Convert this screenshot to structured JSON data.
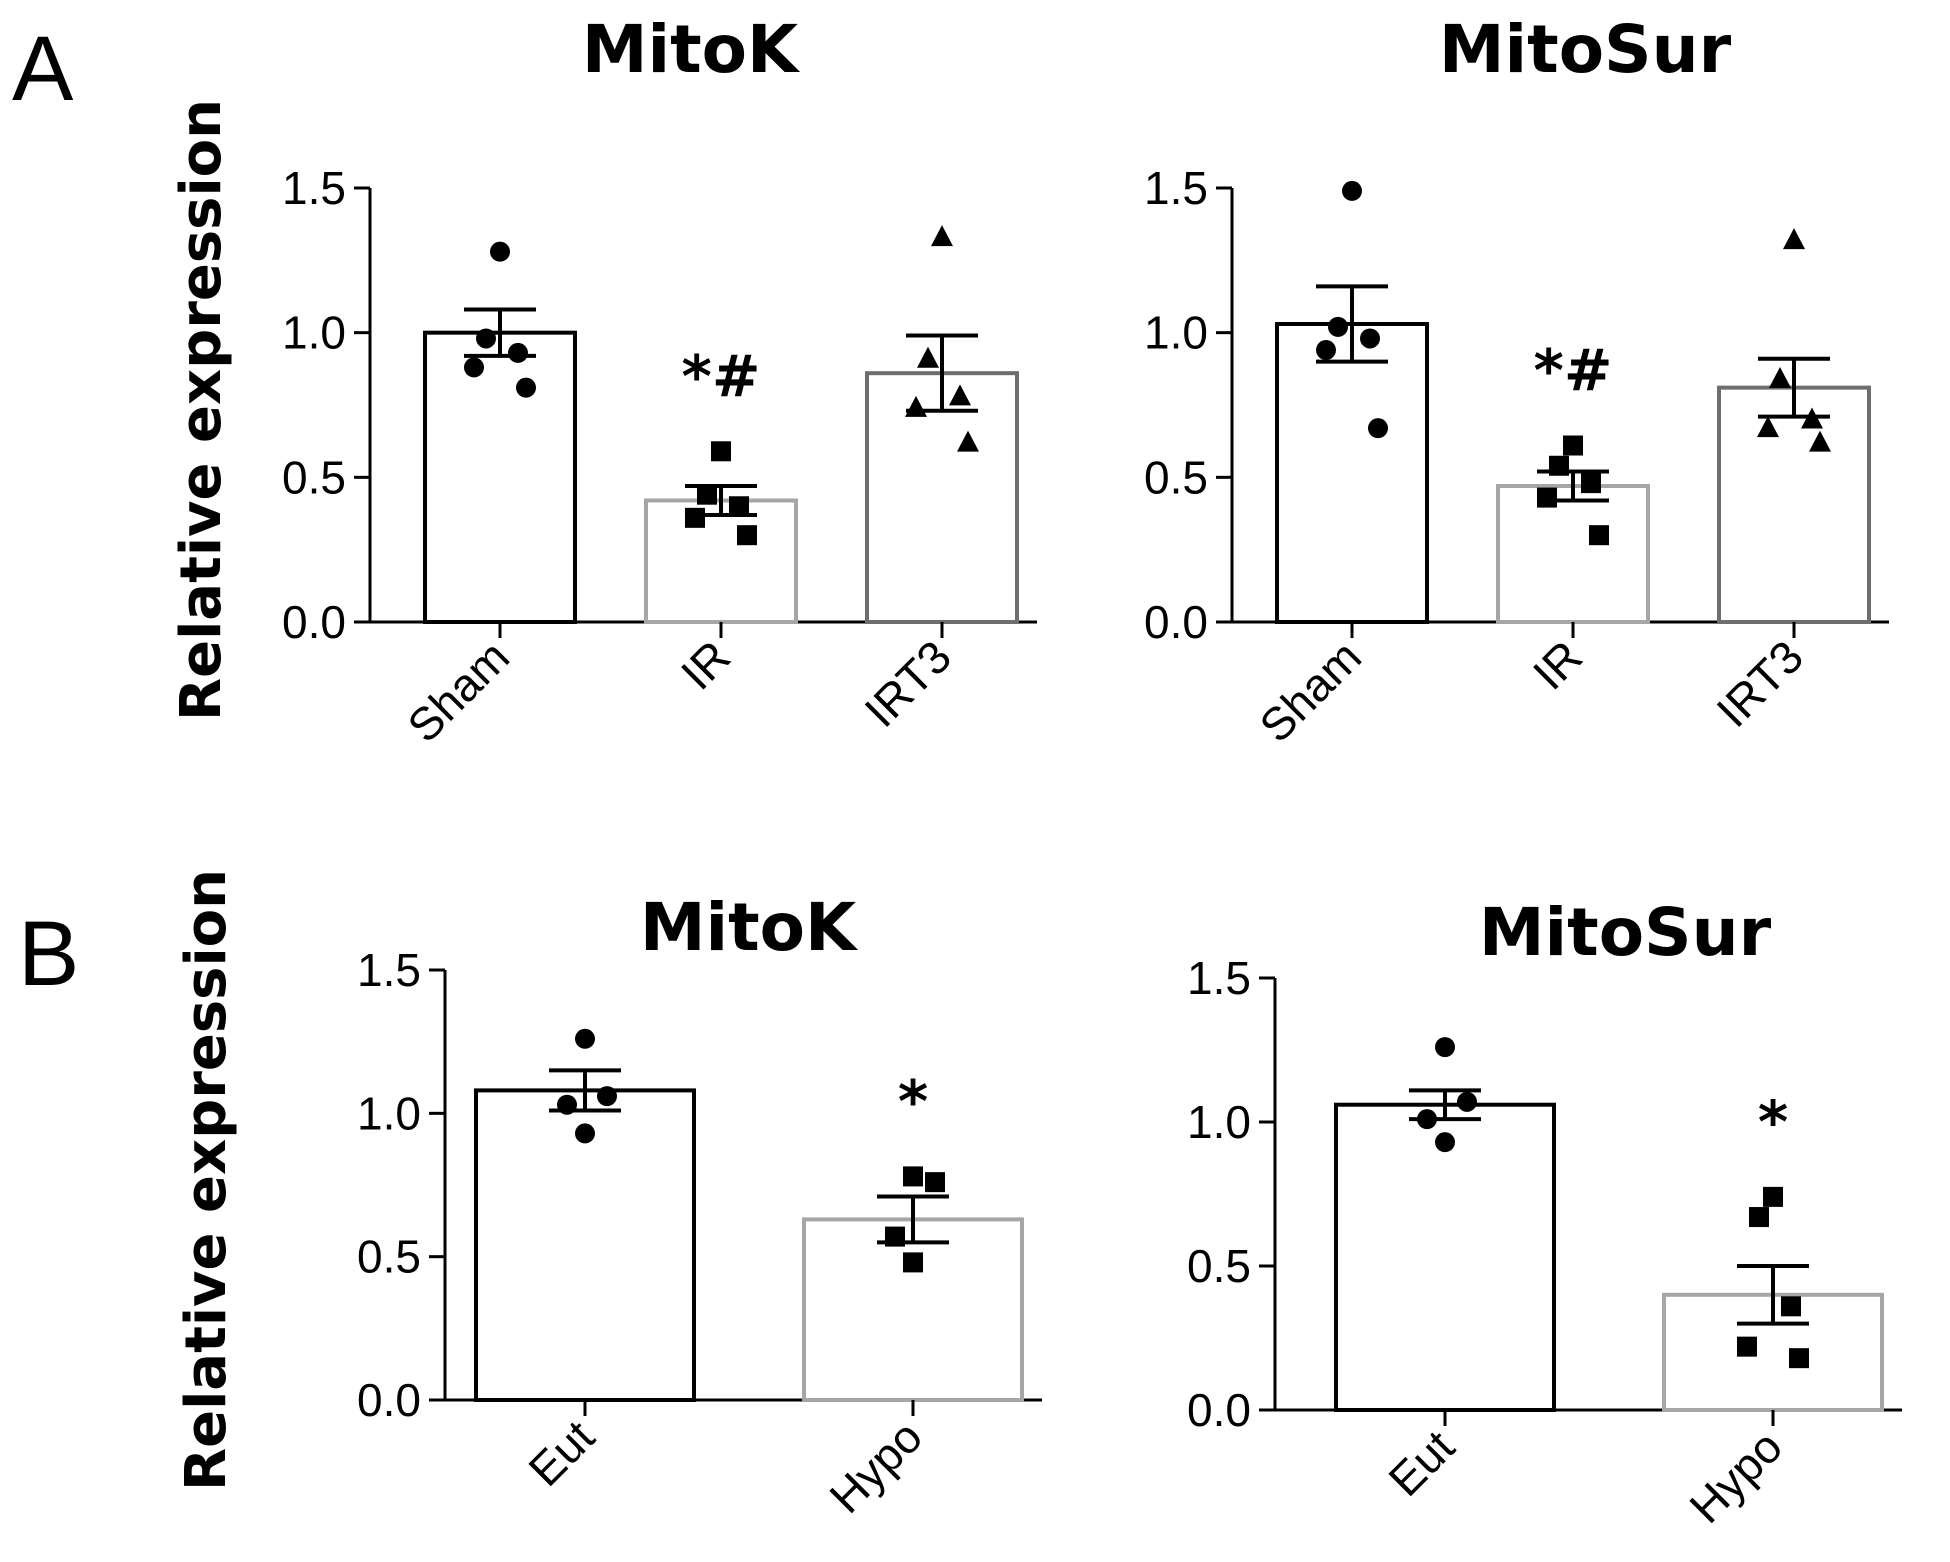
{
  "panels": [
    {
      "letter": "A"
    },
    {
      "letter": "B"
    }
  ],
  "colors": {
    "axis": "#000000",
    "bar_black": "#000000",
    "bar_light_gray": "#a6a6a6",
    "bar_dark_gray": "#6e6e6e",
    "points": "#000000"
  },
  "chart_data": [
    {
      "type": "bar",
      "panel": "A",
      "title": "MitoK",
      "ylabel": "Relative expression",
      "xlabel": "",
      "ylim": [
        0,
        1.5
      ],
      "yticks": [
        "0.0",
        "0.5",
        "1.0",
        "1.5"
      ],
      "categories": [
        "Sham",
        "IR",
        "IRT3"
      ],
      "values": [
        1.0,
        0.42,
        0.86
      ],
      "sem": [
        0.08,
        0.05,
        0.13
      ],
      "bar_colors": [
        "#000000",
        "#a6a6a6",
        "#6e6e6e"
      ],
      "markers": [
        "circle",
        "square",
        "triangle"
      ],
      "points": [
        [
          1.28,
          0.98,
          0.93,
          0.88,
          0.81
        ],
        [
          0.59,
          0.44,
          0.4,
          0.36,
          0.3
        ],
        [
          1.33,
          0.91,
          0.78,
          0.74,
          0.62
        ]
      ],
      "annotations": [
        "",
        "*#",
        ""
      ]
    },
    {
      "type": "bar",
      "panel": "A",
      "title": "MitoSur",
      "ylabel": "",
      "xlabel": "",
      "ylim": [
        0,
        1.5
      ],
      "yticks": [
        "0.0",
        "0.5",
        "1.0",
        "1.5"
      ],
      "categories": [
        "Sham",
        "IR",
        "IRT3"
      ],
      "values": [
        1.03,
        0.47,
        0.81
      ],
      "sem": [
        0.13,
        0.05,
        0.1
      ],
      "bar_colors": [
        "#000000",
        "#a6a6a6",
        "#6e6e6e"
      ],
      "markers": [
        "circle",
        "square",
        "triangle"
      ],
      "points": [
        [
          1.49,
          1.02,
          0.98,
          0.94,
          0.67
        ],
        [
          0.61,
          0.54,
          0.48,
          0.43,
          0.3
        ],
        [
          1.32,
          0.84,
          0.7,
          0.67,
          0.62
        ]
      ],
      "annotations": [
        "",
        "*#",
        ""
      ]
    },
    {
      "type": "bar",
      "panel": "B",
      "title": "MitoK",
      "ylabel": "Relative expression",
      "xlabel": "",
      "ylim": [
        0,
        1.5
      ],
      "yticks": [
        "0.0",
        "0.5",
        "1.0",
        "1.5"
      ],
      "categories": [
        "Eut",
        "Hypo"
      ],
      "values": [
        1.08,
        0.63
      ],
      "sem": [
        0.07,
        0.08
      ],
      "bar_colors": [
        "#000000",
        "#a6a6a6"
      ],
      "markers": [
        "circle",
        "square"
      ],
      "points": [
        [
          1.26,
          1.06,
          1.03,
          0.93
        ],
        [
          0.78,
          0.76,
          0.57,
          0.48
        ]
      ],
      "annotations": [
        "",
        "*"
      ]
    },
    {
      "type": "bar",
      "panel": "B",
      "title": "MitoSur",
      "ylabel": "",
      "xlabel": "",
      "ylim": [
        0,
        1.5
      ],
      "yticks": [
        "0.0",
        "0.5",
        "1.0",
        "1.5"
      ],
      "categories": [
        "Eut",
        "Hypo"
      ],
      "values": [
        1.06,
        0.4
      ],
      "sem": [
        0.05,
        0.1
      ],
      "bar_colors": [
        "#000000",
        "#a6a6a6"
      ],
      "markers": [
        "circle",
        "square"
      ],
      "points": [
        [
          1.26,
          1.07,
          1.01,
          0.93
        ],
        [
          0.74,
          0.67,
          0.36,
          0.22,
          0.18
        ]
      ],
      "annotations": [
        "",
        "*"
      ]
    }
  ]
}
